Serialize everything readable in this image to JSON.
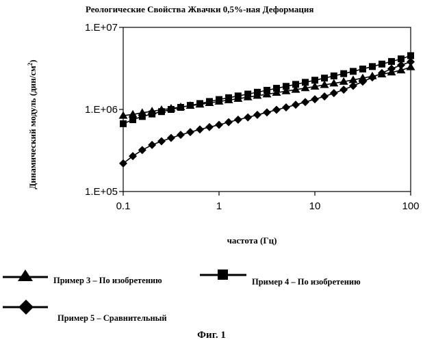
{
  "chart_data": {
    "type": "line",
    "title": "Реологические Свойства Жвачки  0,5%-ная Деформация",
    "xlabel": "частота (Гц)",
    "ylabel_main": "Динамический модуль (дин/см",
    "ylabel_sup": "2",
    "ylabel_close": ")",
    "xscale": "log",
    "yscale": "log",
    "xlim": [
      0.1,
      100
    ],
    "ylim": [
      100000,
      10000000
    ],
    "x_ticks": [
      {
        "value": 0.1,
        "label": "0.1"
      },
      {
        "value": 1,
        "label": "1"
      },
      {
        "value": 10,
        "label": "10"
      },
      {
        "value": 100,
        "label": "100"
      }
    ],
    "y_ticks": [
      {
        "value": 100000,
        "label": "1.E+05"
      },
      {
        "value": 1000000,
        "label": "1.E+06"
      },
      {
        "value": 10000000,
        "label": "1.E+07"
      }
    ],
    "series": [
      {
        "name": "Пример 3 – По изобретению",
        "marker": "triangle",
        "x": [
          0.1,
          0.126,
          0.158,
          0.2,
          0.251,
          0.316,
          0.398,
          0.501,
          0.631,
          0.794,
          1,
          1.26,
          1.58,
          2,
          2.51,
          3.16,
          3.98,
          5.01,
          6.31,
          7.94,
          10,
          12.6,
          15.8,
          20,
          25.1,
          31.6,
          39.8,
          50.1,
          63.1,
          79.4,
          100
        ],
        "values": [
          840000,
          870000,
          910000,
          950000,
          990000,
          1030000,
          1070000,
          1110000,
          1150000,
          1200000,
          1250000,
          1300000,
          1350000,
          1410000,
          1470000,
          1530000,
          1600000,
          1670000,
          1740000,
          1820000,
          1900000,
          1990000,
          2080000,
          2180000,
          2290000,
          2410000,
          2540000,
          2680000,
          2830000,
          3000000,
          3280000
        ]
      },
      {
        "name": "Пример 4 – По изобретению",
        "marker": "square",
        "x": [
          0.1,
          0.126,
          0.158,
          0.2,
          0.251,
          0.316,
          0.398,
          0.501,
          0.631,
          0.794,
          1,
          1.26,
          1.58,
          2,
          2.51,
          3.16,
          3.98,
          5.01,
          6.31,
          7.94,
          10,
          12.6,
          15.8,
          20,
          25.1,
          31.6,
          39.8,
          50.1,
          63.1,
          79.4,
          100
        ],
        "values": [
          670000,
          750000,
          820000,
          880000,
          940000,
          1000000,
          1060000,
          1120000,
          1180000,
          1250000,
          1320000,
          1390000,
          1460000,
          1540000,
          1620000,
          1710000,
          1810000,
          1910000,
          2020000,
          2140000,
          2270000,
          2410000,
          2560000,
          2730000,
          2910000,
          3110000,
          3330000,
          3570000,
          3840000,
          4130000,
          4520000
        ]
      },
      {
        "name": "Пример 5 – Сравнительный",
        "marker": "diamond",
        "x": [
          0.1,
          0.126,
          0.158,
          0.2,
          0.251,
          0.316,
          0.398,
          0.501,
          0.631,
          0.794,
          1,
          1.26,
          1.58,
          2,
          2.51,
          3.16,
          3.98,
          5.01,
          6.31,
          7.94,
          10,
          12.6,
          15.8,
          20,
          25.1,
          31.6,
          39.8,
          50.1,
          63.1,
          79.4,
          100
        ],
        "values": [
          220000,
          270000,
          320000,
          370000,
          410000,
          450000,
          490000,
          530000,
          570000,
          610000,
          650000,
          700000,
          750000,
          800000,
          860000,
          920000,
          990000,
          1060000,
          1140000,
          1230000,
          1330000,
          1440000,
          1580000,
          1740000,
          1940000,
          2180000,
          2460000,
          2780000,
          3130000,
          3460000,
          3800000
        ]
      }
    ]
  },
  "caption": "Фиг. 1"
}
